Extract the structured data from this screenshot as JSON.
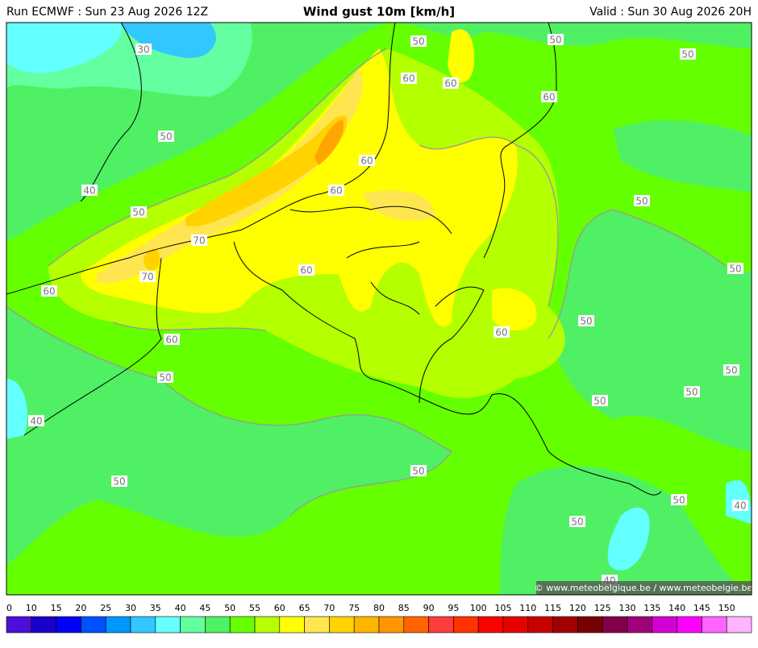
{
  "header": {
    "run": "Run ECMWF : Sun 23 Aug 2026 12Z",
    "title": "Wind gust 10m [km/h]",
    "valid": "Valid : Sun 30 Aug 2026 20H"
  },
  "map": {
    "credit": "© www.meteobelgique.be / www.meteobelgie.be",
    "contour_labels": [
      30,
      50,
      50,
      50,
      60,
      60,
      60,
      50,
      60,
      40,
      60,
      50,
      50,
      70,
      70,
      60,
      60,
      50,
      50,
      60,
      60,
      50,
      50,
      50,
      50,
      40,
      50,
      50,
      50,
      40,
      50,
      40
    ]
  },
  "legend": {
    "ticks": [
      0,
      10,
      15,
      20,
      25,
      30,
      35,
      40,
      45,
      50,
      55,
      60,
      65,
      70,
      75,
      80,
      85,
      90,
      95,
      100,
      105,
      110,
      115,
      120,
      125,
      130,
      135,
      140,
      145,
      150
    ],
    "colors": [
      "#4b0fd8",
      "#1a00c8",
      "#0000ff",
      "#0050ff",
      "#0096ff",
      "#32c8ff",
      "#64ffff",
      "#64ffa0",
      "#50f064",
      "#64ff00",
      "#b4ff00",
      "#ffff00",
      "#ffe650",
      "#ffd200",
      "#ffb400",
      "#ff9600",
      "#ff6400",
      "#ff3c3c",
      "#ff3200",
      "#ff0000",
      "#e60000",
      "#c80000",
      "#a00000",
      "#780000",
      "#82004b",
      "#a00078",
      "#d200d2",
      "#ff00ff",
      "#ff64ff",
      "#ffb4ff"
    ]
  }
}
